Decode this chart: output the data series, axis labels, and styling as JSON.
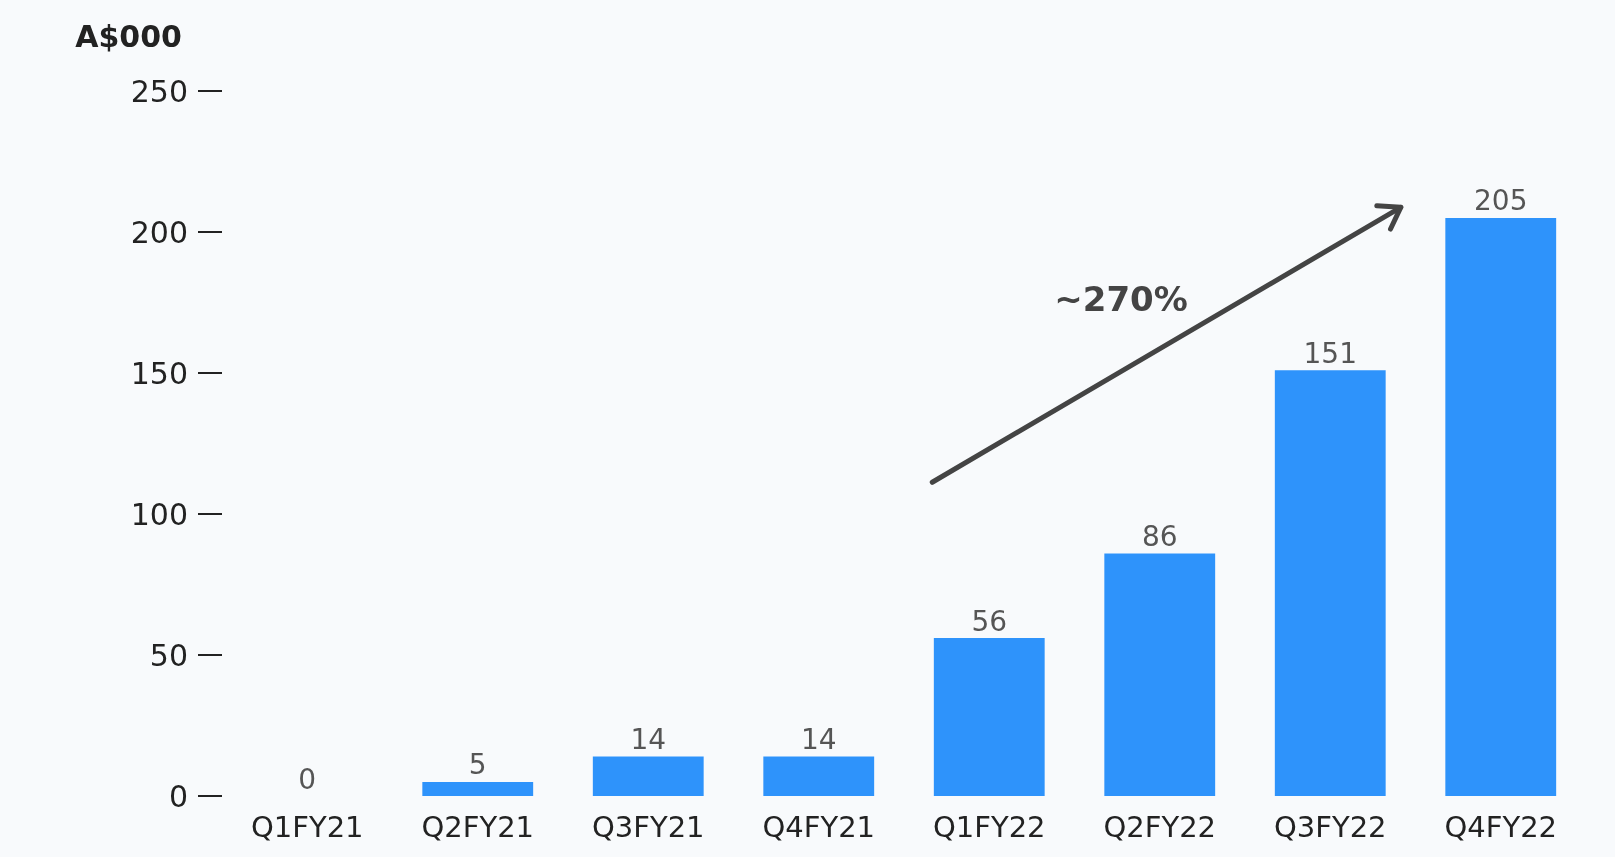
{
  "chart_data": {
    "type": "bar",
    "ylabel": "A$000",
    "categories": [
      "Q1FY21",
      "Q2FY21",
      "Q3FY21",
      "Q4FY21",
      "Q1FY22",
      "Q2FY22",
      "Q3FY22",
      "Q4FY22"
    ],
    "values": [
      0,
      5,
      14,
      14,
      56,
      86,
      151,
      205
    ],
    "color": "#2e93fb",
    "ylim": [
      0,
      250
    ],
    "yticks": [
      0,
      50,
      100,
      150,
      200,
      250
    ],
    "grid": false,
    "data_labels": true,
    "annotations": [
      "~270%"
    ]
  }
}
